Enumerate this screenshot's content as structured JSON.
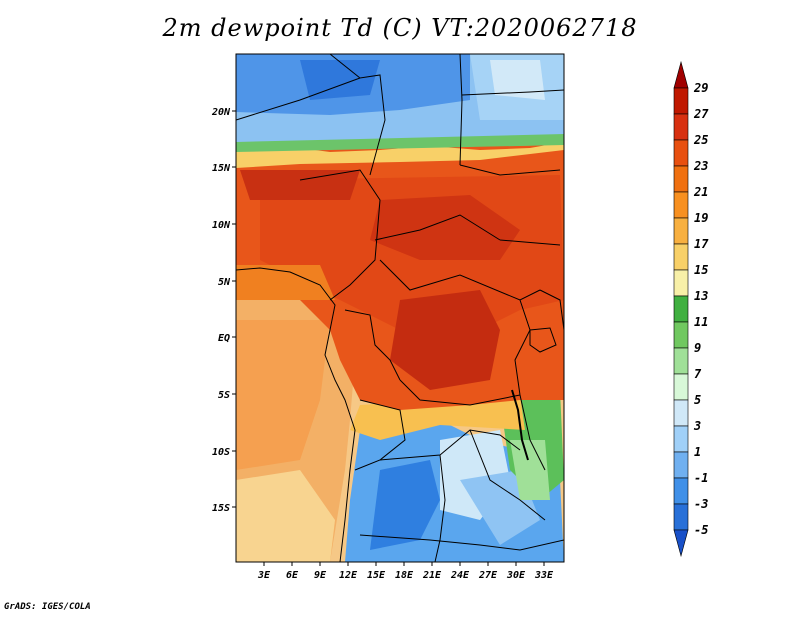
{
  "title": "2m dewpoint Td (C) VT:2020062718",
  "credit": "GrADS: IGES/COLA",
  "map": {
    "lat_labels": [
      "20N",
      "15N",
      "10N",
      "5N",
      "EQ",
      "5S",
      "10S",
      "15S"
    ],
    "lon_labels": [
      "3E",
      "6E",
      "9E",
      "12E",
      "15E",
      "18E",
      "21E",
      "24E",
      "27E",
      "30E",
      "33E"
    ]
  },
  "colorbar": {
    "labels": [
      "29",
      "27",
      "25",
      "23",
      "21",
      "19",
      "17",
      "15",
      "13",
      "11",
      "9",
      "7",
      "5",
      "3",
      "1",
      "-1",
      "-3",
      "-5"
    ],
    "colors_top_to_bottom": [
      "#a00000",
      "#c01800",
      "#d83010",
      "#e85010",
      "#f07010",
      "#f89020",
      "#f8b040",
      "#f8d068",
      "#f8f0a8",
      "#40b040",
      "#70c860",
      "#a0e098",
      "#d8f8d8",
      "#d0e8f8",
      "#a0d0f8",
      "#70b0f0",
      "#4090e8",
      "#2870d8",
      "#1850c8"
    ]
  }
}
